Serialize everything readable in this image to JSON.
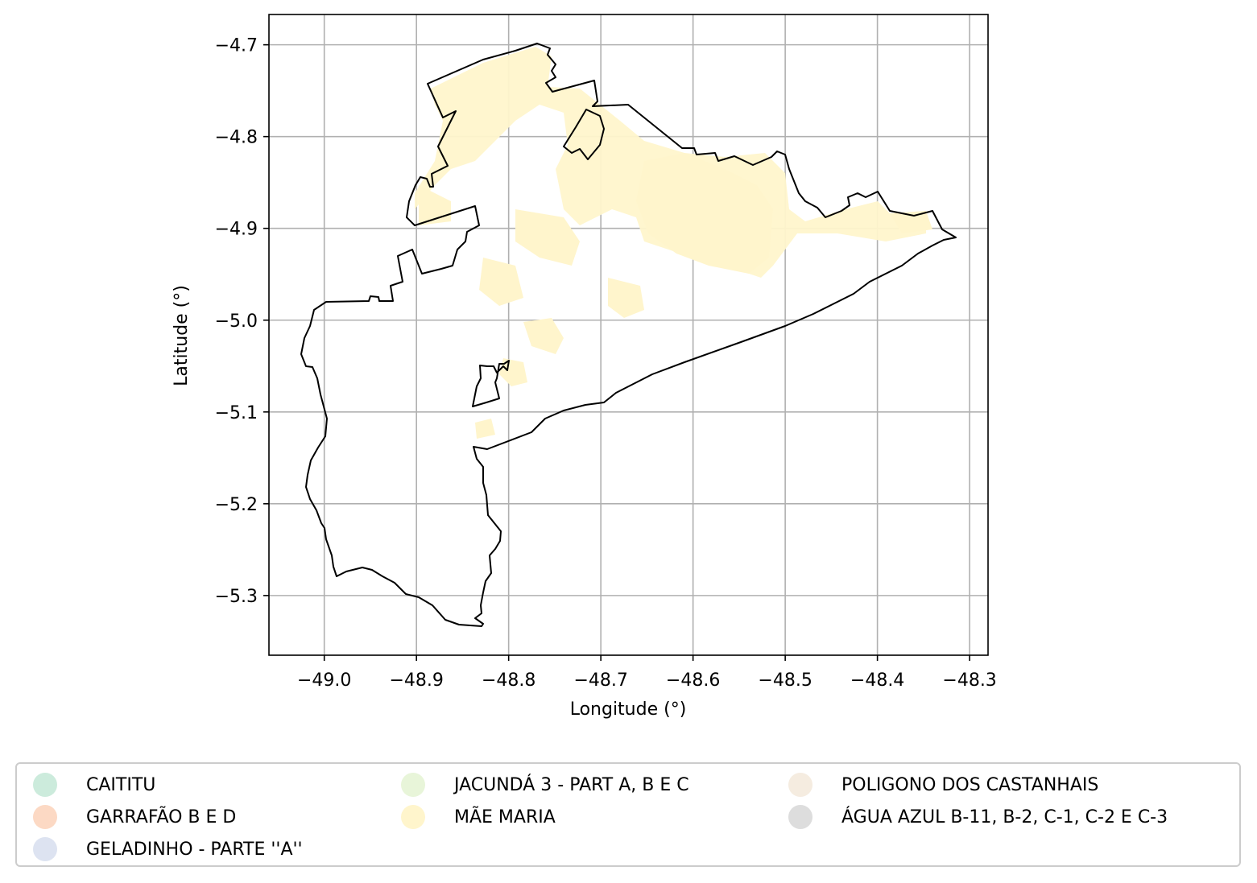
{
  "chart_data": {
    "type": "map",
    "xlabel": "Longitude (°)",
    "ylabel": "Latitude (°)",
    "xlim": [
      -49.06,
      -48.28
    ],
    "ylim": [
      -5.365,
      -4.667
    ],
    "xticks": [
      -49.0,
      -48.9,
      -48.8,
      -48.7,
      -48.6,
      -48.5,
      -48.4,
      -48.3
    ],
    "xtick_labels": [
      "−49.0",
      "−48.9",
      "−48.8",
      "−48.7",
      "−48.6",
      "−48.5",
      "−48.4",
      "−48.3"
    ],
    "yticks": [
      -4.7,
      -4.8,
      -4.9,
      -5.0,
      -5.1,
      -5.2,
      -5.3
    ],
    "ytick_labels": [
      "−4.7",
      "−4.8",
      "−4.9",
      "−5.0",
      "−5.1",
      "−5.2",
      "−5.3"
    ],
    "grid": true,
    "legend_position": "bottom",
    "boundary_outline_color": "#000000",
    "legend": [
      {
        "label": "CAITITU",
        "color": "#ccebdc"
      },
      {
        "label": "GARRAFÃO B E D",
        "color": "#fcd9c4"
      },
      {
        "label": "GELADINHO - PARTE ''A''",
        "color": "#dde3f1"
      },
      {
        "label": "JACUNDÁ 3 - PART A, B E C",
        "color": "#e8f5d9"
      },
      {
        "label": "MÃE MARIA",
        "color": "#fff5cc"
      },
      {
        "label": "POLIGONO DOS CASTANHAIS",
        "color": "#f5ece0"
      },
      {
        "label": "ÁGUA AZUL B-11, B-2, C-1, C-2 E C-3",
        "color": "#dddddd"
      }
    ]
  }
}
